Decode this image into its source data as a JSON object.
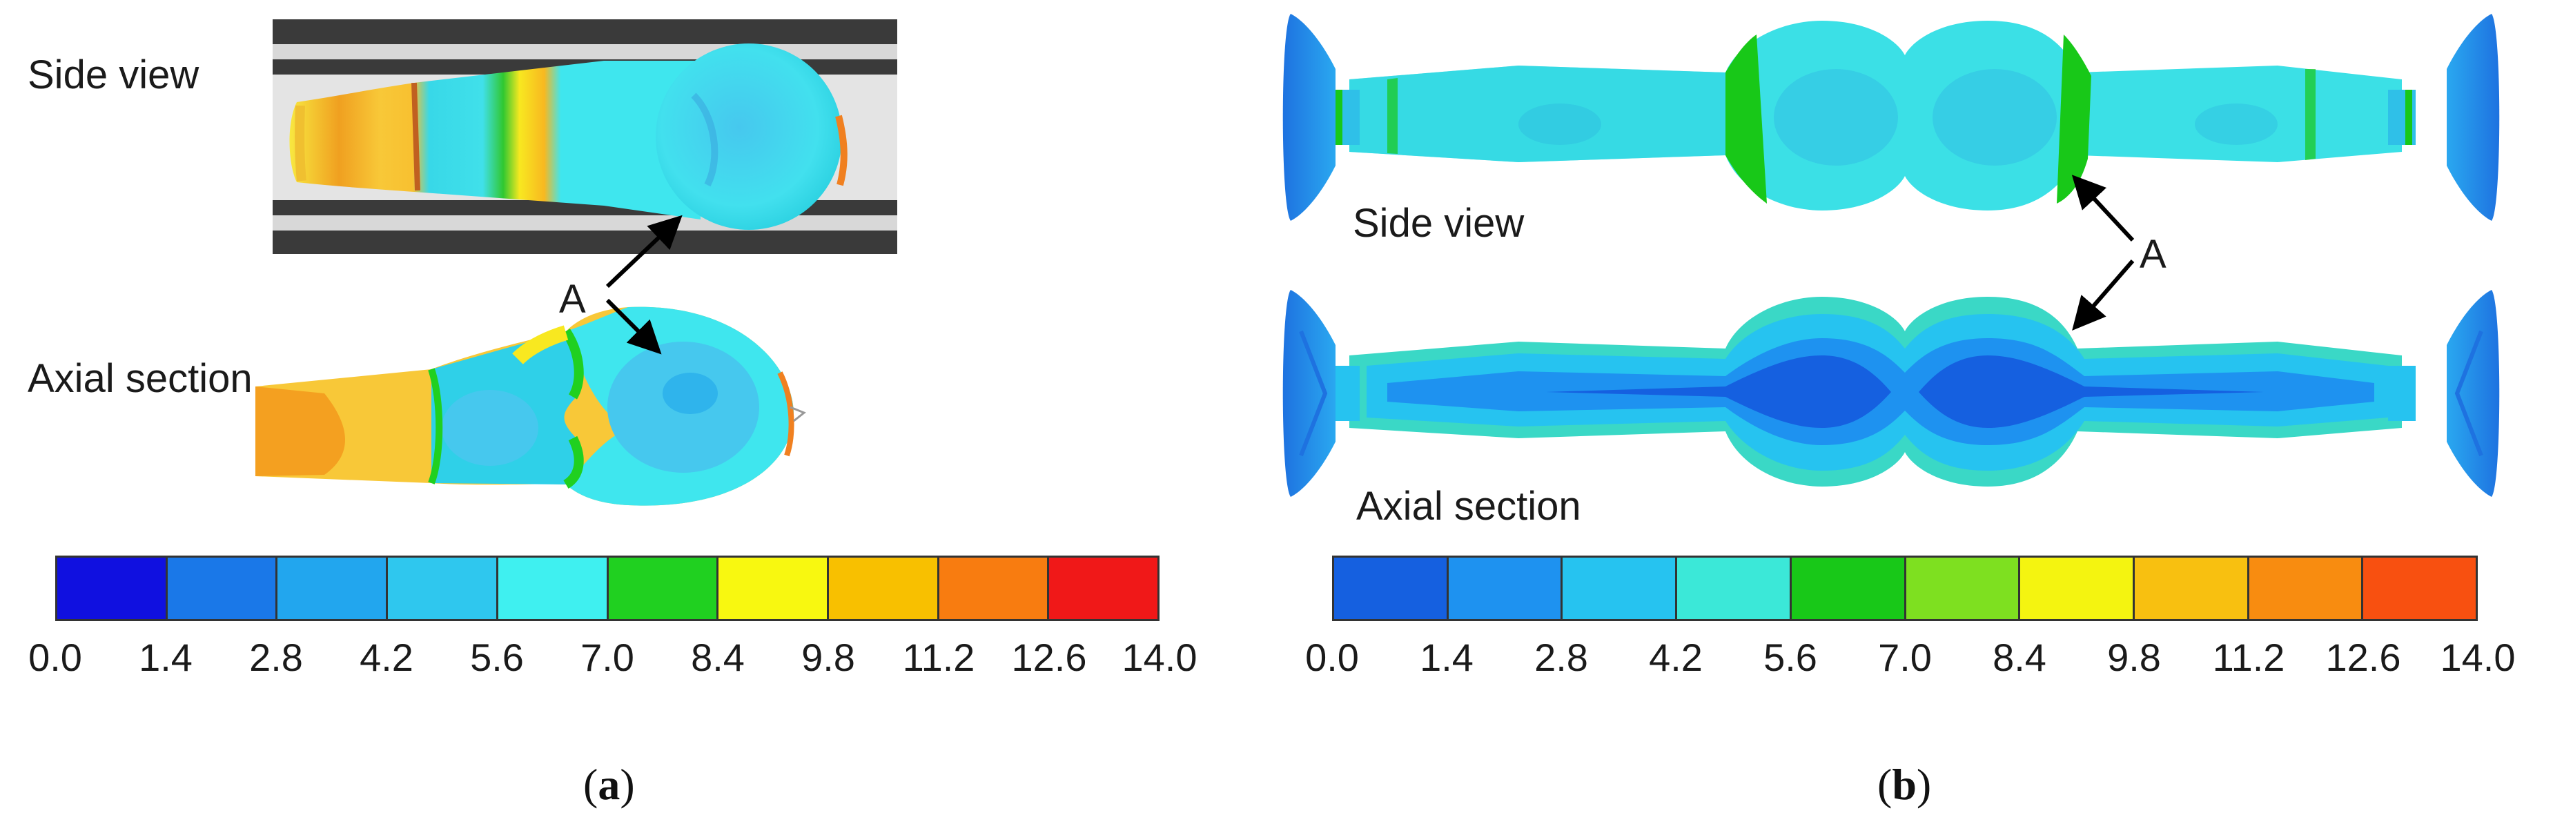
{
  "panel_a": {
    "side_view_label": "Side view",
    "axial_section_label": "Axial section",
    "marker_label": "A",
    "caption_letter": "a",
    "colorbar": {
      "ticks": [
        "0.0",
        "1.4",
        "2.8",
        "4.2",
        "5.6",
        "7.0",
        "8.4",
        "9.8",
        "11.2",
        "12.6",
        "14.0"
      ],
      "colors": [
        "#1010e0",
        "#1a78e8",
        "#22a6ee",
        "#2fc7ee",
        "#3ff0f0",
        "#20d020",
        "#f8f810",
        "#f8c000",
        "#f87c10",
        "#f01818"
      ]
    }
  },
  "panel_b": {
    "side_view_label": "Side view",
    "axial_section_label": "Axial section",
    "marker_label": "A",
    "caption_letter": "b",
    "colorbar": {
      "ticks": [
        "0.0",
        "1.4",
        "2.8",
        "4.2",
        "5.6",
        "7.0",
        "8.4",
        "9.8",
        "11.2",
        "12.6",
        "14.0"
      ],
      "colors": [
        "#1560e0",
        "#1e92f0",
        "#26c3f0",
        "#3be8d8",
        "#18c818",
        "#7ee020",
        "#f4f410",
        "#f8c010",
        "#f88c10",
        "#f85010"
      ]
    }
  }
}
